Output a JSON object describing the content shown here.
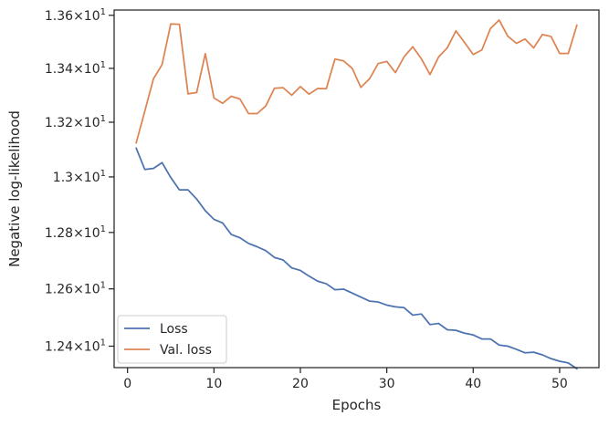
{
  "chart_data": {
    "type": "line",
    "title": "",
    "xlabel": "Epochs",
    "ylabel": "Negative log-likelihood",
    "xlim": [
      -1.55,
      54.55
    ],
    "ylim": [
      12.326,
      13.62
    ],
    "y_scale": "log",
    "grid": false,
    "legend_position": "lower left",
    "x_ticks": [
      {
        "value": 0,
        "label": "0"
      },
      {
        "value": 10,
        "label": "10"
      },
      {
        "value": 20,
        "label": "20"
      },
      {
        "value": 30,
        "label": "30"
      },
      {
        "value": 40,
        "label": "40"
      },
      {
        "value": 50,
        "label": "50"
      }
    ],
    "y_ticks": [
      {
        "value": 12.4,
        "mantissa": "1.24",
        "base": "10",
        "exponent": "1"
      },
      {
        "value": 12.6,
        "mantissa": "1.26",
        "base": "10",
        "exponent": "1"
      },
      {
        "value": 12.8,
        "mantissa": "1.28",
        "base": "10",
        "exponent": "1"
      },
      {
        "value": 13.0,
        "mantissa": "1.3",
        "base": "10",
        "exponent": "1"
      },
      {
        "value": 13.2,
        "mantissa": "1.32",
        "base": "10",
        "exponent": "1"
      },
      {
        "value": 13.4,
        "mantissa": "1.34",
        "base": "10",
        "exponent": "1"
      },
      {
        "value": 13.6,
        "mantissa": "1.36",
        "base": "10",
        "exponent": "1"
      }
    ],
    "x": [
      1,
      2,
      3,
      4,
      5,
      6,
      7,
      8,
      9,
      10,
      11,
      12,
      13,
      14,
      15,
      16,
      17,
      18,
      19,
      20,
      21,
      22,
      23,
      24,
      25,
      26,
      27,
      28,
      29,
      30,
      31,
      32,
      33,
      34,
      35,
      36,
      37,
      38,
      39,
      40,
      41,
      42,
      43,
      44,
      45,
      46,
      47,
      48,
      49,
      50,
      51,
      52
    ],
    "series": [
      {
        "name": "Loss",
        "color": "#4c72b0",
        "values": [
          13.105,
          13.027,
          13.031,
          13.052,
          12.998,
          12.953,
          12.953,
          12.92,
          12.878,
          12.847,
          12.834,
          12.793,
          12.781,
          12.761,
          12.749,
          12.735,
          12.711,
          12.702,
          12.674,
          12.665,
          12.645,
          12.627,
          12.618,
          12.597,
          12.599,
          12.585,
          12.571,
          12.557,
          12.554,
          12.543,
          12.537,
          12.534,
          12.508,
          12.512,
          12.475,
          12.479,
          12.457,
          12.455,
          12.445,
          12.439,
          12.425,
          12.425,
          12.404,
          12.4,
          12.389,
          12.377,
          12.379,
          12.37,
          12.357,
          12.348,
          12.342,
          12.322
        ]
      },
      {
        "name": "Val. loss",
        "color": "#dd8452",
        "values": [
          13.124,
          13.241,
          13.361,
          13.414,
          13.567,
          13.566,
          13.305,
          13.31,
          13.455,
          13.29,
          13.27,
          13.296,
          13.286,
          13.232,
          13.232,
          13.26,
          13.326,
          13.328,
          13.3,
          13.332,
          13.304,
          13.325,
          13.324,
          13.435,
          13.428,
          13.4,
          13.329,
          13.361,
          13.418,
          13.426,
          13.384,
          13.443,
          13.481,
          13.436,
          13.377,
          13.443,
          13.477,
          13.541,
          13.497,
          13.452,
          13.469,
          13.55,
          13.582,
          13.521,
          13.494,
          13.51,
          13.477,
          13.527,
          13.52,
          13.456,
          13.456,
          13.563
        ]
      }
    ]
  }
}
